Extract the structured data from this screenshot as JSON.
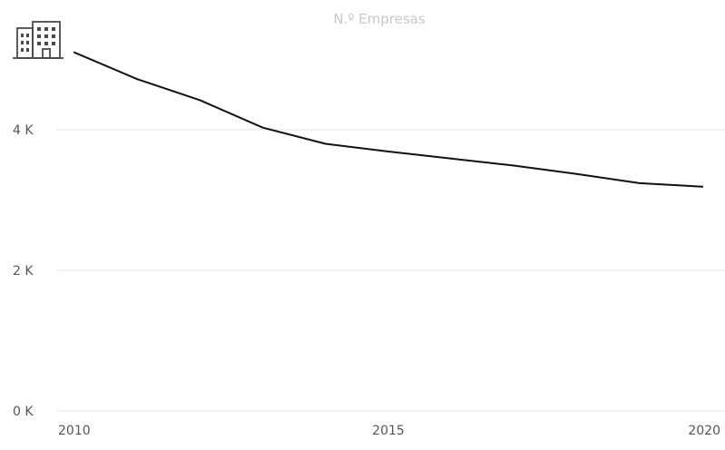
{
  "chart_data": {
    "type": "line",
    "title": "N.º Empresas",
    "x": [
      2010,
      2011,
      2012,
      2013,
      2014,
      2015,
      2016,
      2017,
      2018,
      2019,
      2020
    ],
    "series": [
      {
        "values": [
          5100,
          4720,
          4420,
          4030,
          3800,
          3690,
          3590,
          3490,
          3370,
          3240,
          3190
        ]
      }
    ],
    "xlim": [
      2010,
      2020
    ],
    "ylim": [
      0,
      5200
    ],
    "x_tick_values": [
      2010,
      2015,
      2020
    ],
    "x_tick_labels": [
      "2010",
      "2015",
      "2020"
    ],
    "y_tick_values": [
      0,
      2000,
      4000
    ],
    "y_tick_labels": [
      "0 K",
      "2 K",
      "4 K"
    ],
    "grid": true,
    "legend": "none",
    "line_color": "#111111"
  },
  "icon": "office-building-icon"
}
